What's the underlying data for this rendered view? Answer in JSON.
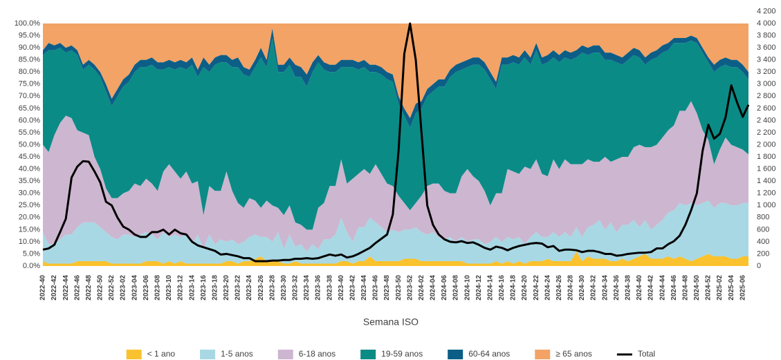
{
  "chart_data": {
    "type": "area",
    "stacked": true,
    "x_label": "Semana ISO",
    "categories": [
      "2022-40",
      null,
      "2022-42",
      null,
      "2022-44",
      null,
      "2022-46",
      null,
      "2022-48",
      null,
      "2022-50",
      null,
      "2022-52",
      null,
      "2023-02",
      null,
      "2023-04",
      null,
      "2023-06",
      null,
      "2023-08",
      null,
      "2023-10",
      null,
      "2023-12",
      null,
      "2023-14",
      null,
      "2023-16",
      null,
      "2023-18",
      null,
      "2023-20",
      null,
      "2023-22",
      null,
      "2023-24",
      null,
      "2023-26",
      null,
      "2023-28",
      null,
      "2023-30",
      null,
      "2023-32",
      null,
      "2023-34",
      null,
      "2023-36",
      null,
      "2023-38",
      null,
      "2023-40",
      null,
      "2023-42",
      null,
      "2023-44",
      null,
      "2023-46",
      null,
      "2023-48",
      null,
      "2023-50",
      null,
      "2023-52",
      null,
      "2024-02",
      null,
      "2024-04",
      null,
      "2024-06",
      null,
      "2024-08",
      null,
      "2024-10",
      null,
      "2024-12",
      null,
      "2024-14",
      null,
      "2024-16",
      null,
      "2024-18",
      null,
      "2024-20",
      null,
      "2024-22",
      null,
      "2024-24",
      null,
      "2024-26",
      null,
      "2024-28",
      null,
      "2024-30",
      null,
      "2024-32",
      null,
      "2024-34",
      null,
      "2024-36",
      null,
      "2024-38",
      null,
      "2024-40",
      null,
      "2024-42",
      null,
      "2024-44",
      null,
      "2024-46",
      null,
      "2024-48",
      null,
      "2024-50",
      null,
      "2024-52",
      null,
      "2025-02",
      null,
      "2025-04",
      null,
      "2025-06",
      null
    ],
    "ylim": [
      0,
      100
    ],
    "yticks": [
      {
        "value": 0,
        "label": "0.0%"
      },
      {
        "value": 5,
        "label": "5.0%"
      },
      {
        "value": 10,
        "label": "10.0%"
      },
      {
        "value": 15,
        "label": "15.0%"
      },
      {
        "value": 20,
        "label": "20.0%"
      },
      {
        "value": 25,
        "label": "25.0%"
      },
      {
        "value": 30,
        "label": "30.0%"
      },
      {
        "value": 35,
        "label": "35.0%"
      },
      {
        "value": 40,
        "label": "40.0%"
      },
      {
        "value": 45,
        "label": "45.0%"
      },
      {
        "value": 50,
        "label": "50.0%"
      },
      {
        "value": 55,
        "label": "55.0%"
      },
      {
        "value": 60,
        "label": "60.0%"
      },
      {
        "value": 65,
        "label": "65.0%"
      },
      {
        "value": 70,
        "label": "70.0%"
      },
      {
        "value": 75,
        "label": "75.0%"
      },
      {
        "value": 80,
        "label": "80.0%"
      },
      {
        "value": 85,
        "label": "85.0%"
      },
      {
        "value": 90,
        "label": "90.0%"
      },
      {
        "value": 95,
        "label": "95.0%"
      },
      {
        "value": 100,
        "label": "100.0%"
      }
    ],
    "y2lim": [
      0,
      4200
    ],
    "y2ticks": [
      0,
      200,
      400,
      600,
      800,
      {
        "value": 1000,
        "label": "1 000"
      },
      {
        "value": 1200,
        "label": "1 200"
      },
      {
        "value": 1400,
        "label": "1 400"
      },
      {
        "value": 1600,
        "label": "1 600"
      },
      {
        "value": 1800,
        "label": "1 800"
      },
      {
        "value": 2000,
        "label": "2 000"
      },
      {
        "value": 2200,
        "label": "2 200"
      },
      {
        "value": 2400,
        "label": "2 400"
      },
      {
        "value": 2600,
        "label": "2 600"
      },
      {
        "value": 2800,
        "label": "2 800"
      },
      {
        "value": 3000,
        "label": "3 000"
      },
      {
        "value": 3200,
        "label": "3 200"
      },
      {
        "value": 3400,
        "label": "3 400"
      },
      {
        "value": 3600,
        "label": "3 600"
      },
      {
        "value": 3800,
        "label": "3 800"
      },
      {
        "value": 4000,
        "label": "4 000"
      },
      {
        "value": 4200,
        "label": "4 200"
      }
    ],
    "legend": "bottom",
    "series": [
      {
        "name": "< 1 ano",
        "color": "#f9c22e",
        "values": [
          2,
          1,
          1,
          1,
          1,
          1,
          2,
          2,
          2,
          2,
          2,
          2,
          1,
          1,
          1,
          1,
          1,
          1,
          2,
          2,
          2,
          1,
          2,
          1,
          2,
          1,
          1,
          1,
          1,
          1,
          1,
          1,
          2,
          2,
          1,
          2,
          2,
          3,
          4,
          2,
          2,
          2,
          1,
          1,
          2,
          1,
          1,
          1,
          1,
          1,
          1,
          1,
          2,
          2,
          1,
          2,
          2,
          4,
          2,
          2,
          2,
          2,
          2,
          3,
          3,
          3,
          2,
          2,
          2,
          2,
          2,
          2,
          2,
          2,
          1,
          1,
          1,
          1,
          1,
          2,
          1,
          2,
          1,
          2,
          1,
          2,
          2,
          2,
          3,
          2,
          2,
          2,
          2,
          6,
          2,
          4,
          3,
          3,
          3,
          2,
          2,
          3,
          2,
          3,
          4,
          5,
          3,
          3,
          3,
          4,
          3,
          4,
          3,
          2,
          3,
          4,
          5,
          4,
          4,
          4,
          3,
          3,
          4,
          4
        ]
      },
      {
        "name": "1-5 anos",
        "color": "#a8d8e4",
        "values": [
          12,
          8,
          8,
          10,
          12,
          12,
          14,
          16,
          16,
          16,
          14,
          12,
          11,
          10,
          12,
          12,
          11,
          12,
          12,
          11,
          9,
          13,
          10,
          12,
          10,
          12,
          8,
          12,
          6,
          12,
          8,
          10,
          8,
          9,
          8,
          8,
          10,
          10,
          8,
          10,
          8,
          12,
          6,
          12,
          6,
          8,
          5,
          8,
          6,
          10,
          10,
          12,
          18,
          12,
          9,
          14,
          14,
          16,
          16,
          14,
          12,
          13,
          12,
          12,
          12,
          13,
          12,
          11,
          12,
          10,
          9,
          10,
          8,
          10,
          9,
          10,
          10,
          8,
          9,
          10,
          9,
          10,
          10,
          10,
          8,
          10,
          12,
          10,
          9,
          12,
          10,
          12,
          10,
          10,
          10,
          12,
          14,
          16,
          12,
          16,
          12,
          14,
          15,
          16,
          12,
          14,
          12,
          14,
          16,
          18,
          20,
          22,
          22,
          24,
          22,
          22,
          22,
          20,
          22,
          22,
          22,
          22,
          22,
          22
        ]
      },
      {
        "name": "6-18 anos",
        "color": "#cdb6d0",
        "values": [
          36,
          38,
          45,
          48,
          49,
          48,
          40,
          37,
          36,
          27,
          24,
          18,
          16,
          17,
          17,
          18,
          22,
          20,
          22,
          21,
          20,
          25,
          30,
          26,
          24,
          26,
          25,
          22,
          14,
          20,
          22,
          20,
          29,
          20,
          17,
          14,
          16,
          14,
          12,
          15,
          15,
          10,
          14,
          12,
          10,
          8,
          9,
          6,
          17,
          15,
          22,
          20,
          24,
          20,
          26,
          22,
          24,
          18,
          24,
          22,
          20,
          18,
          15,
          11,
          8,
          10,
          15,
          20,
          20,
          22,
          20,
          18,
          20,
          25,
          30,
          26,
          24,
          22,
          15,
          18,
          20,
          28,
          28,
          26,
          32,
          28,
          30,
          26,
          25,
          30,
          28,
          30,
          30,
          26,
          30,
          28,
          26,
          24,
          30,
          25,
          30,
          28,
          28,
          30,
          34,
          30,
          34,
          33,
          34,
          34,
          35,
          38,
          39,
          42,
          38,
          30,
          25,
          18,
          22,
          27,
          25,
          24,
          22,
          20
        ]
      },
      {
        "name": "19-59 anos",
        "color": "#0b8b86",
        "values": [
          37,
          42,
          35,
          31,
          26,
          28,
          31,
          26,
          29,
          36,
          38,
          40,
          38,
          42,
          44,
          45,
          46,
          49,
          46,
          49,
          50,
          42,
          40,
          42,
          46,
          42,
          49,
          43,
          61,
          47,
          52,
          53,
          45,
          51,
          56,
          55,
          50,
          55,
          62,
          55,
          69,
          56,
          59,
          58,
          60,
          61,
          59,
          65,
          60,
          55,
          47,
          47,
          38,
          48,
          46,
          43,
          42,
          42,
          38,
          41,
          43,
          43,
          38,
          36,
          34,
          37,
          36,
          37,
          38,
          40,
          43,
          48,
          50,
          44,
          42,
          46,
          48,
          50,
          52,
          43,
          53,
          43,
          45,
          45,
          45,
          43,
          45,
          45,
          47,
          42,
          44,
          42,
          43,
          44,
          46,
          43,
          45,
          45,
          40,
          42,
          40,
          38,
          40,
          38,
          36,
          34,
          36,
          36,
          35,
          33,
          34,
          28,
          28,
          25,
          29,
          32,
          32,
          38,
          34,
          30,
          32,
          33,
          32,
          31
        ]
      },
      {
        "name": "60-64 anos",
        "color": "#0c5e87",
        "values": [
          2,
          3,
          2,
          2,
          2,
          2,
          2,
          2,
          2,
          2,
          2,
          3,
          3,
          3,
          3,
          3,
          3,
          3,
          3,
          3,
          3,
          3,
          3,
          3,
          3,
          3,
          3,
          3,
          4,
          3,
          3,
          3,
          3,
          3,
          4,
          3,
          3,
          3,
          4,
          3,
          4,
          3,
          3,
          3,
          5,
          4,
          5,
          4,
          3,
          3,
          3,
          3,
          3,
          3,
          3,
          3,
          3,
          3,
          3,
          3,
          3,
          3,
          3,
          3,
          4,
          4,
          3,
          3,
          3,
          3,
          3,
          3,
          3,
          3,
          3,
          3,
          3,
          3,
          3,
          3,
          3,
          3,
          3,
          3,
          3,
          3,
          3,
          3,
          3,
          3,
          3,
          3,
          3,
          3,
          3,
          3,
          3,
          3,
          3,
          3,
          3,
          3,
          3,
          3,
          3,
          3,
          3,
          3,
          3,
          3,
          2,
          2,
          2,
          2,
          2,
          2,
          2,
          3,
          3,
          3,
          3,
          3,
          3,
          3
        ]
      },
      {
        "name": "≥ 65 anos",
        "color": "#f2a365",
        "values": [
          11,
          8,
          9,
          8,
          10,
          9,
          11,
          17,
          15,
          17,
          20,
          25,
          31,
          27,
          23,
          21,
          17,
          15,
          15,
          14,
          16,
          16,
          15,
          16,
          15,
          16,
          14,
          19,
          14,
          17,
          14,
          13,
          13,
          15,
          14,
          18,
          19,
          15,
          10,
          15,
          2,
          17,
          17,
          14,
          17,
          18,
          21,
          16,
          13,
          16,
          17,
          17,
          15,
          15,
          15,
          16,
          15,
          17,
          17,
          18,
          20,
          21,
          30,
          35,
          39,
          33,
          32,
          27,
          25,
          23,
          23,
          19,
          17,
          16,
          15,
          14,
          14,
          16,
          20,
          24,
          14,
          14,
          13,
          14,
          11,
          14,
          8,
          14,
          13,
          11,
          13,
          11,
          12,
          11,
          9,
          10,
          9,
          9,
          12,
          12,
          13,
          14,
          12,
          10,
          11,
          14,
          12,
          11,
          9,
          8,
          6,
          6,
          6,
          5,
          6,
          10,
          14,
          17,
          15,
          14,
          15,
          15,
          17,
          20
        ]
      },
      {
        "name": "Total",
        "color": "#000000",
        "type": "line",
        "axis": "y2",
        "values": [
          270,
          290,
          350,
          560,
          780,
          1460,
          1640,
          1730,
          1720,
          1560,
          1380,
          1060,
          1000,
          800,
          650,
          600,
          520,
          480,
          480,
          560,
          560,
          600,
          520,
          600,
          540,
          520,
          400,
          340,
          310,
          280,
          250,
          190,
          200,
          180,
          160,
          130,
          130,
          80,
          80,
          80,
          90,
          90,
          100,
          100,
          120,
          120,
          130,
          120,
          130,
          160,
          190,
          170,
          190,
          140,
          160,
          200,
          250,
          300,
          380,
          450,
          520,
          850,
          1900,
          3500,
          4000,
          3400,
          2200,
          1000,
          680,
          520,
          440,
          400,
          390,
          410,
          380,
          390,
          350,
          300,
          270,
          320,
          300,
          260,
          300,
          330,
          350,
          370,
          380,
          370,
          310,
          330,
          250,
          270,
          270,
          260,
          230,
          250,
          250,
          230,
          200,
          200,
          170,
          180,
          200,
          210,
          220,
          220,
          230,
          290,
          290,
          360,
          410,
          500,
          680,
          920,
          1200,
          1900,
          2330,
          2100,
          2180,
          2450,
          2980,
          2700,
          2460,
          2660
        ]
      }
    ]
  }
}
